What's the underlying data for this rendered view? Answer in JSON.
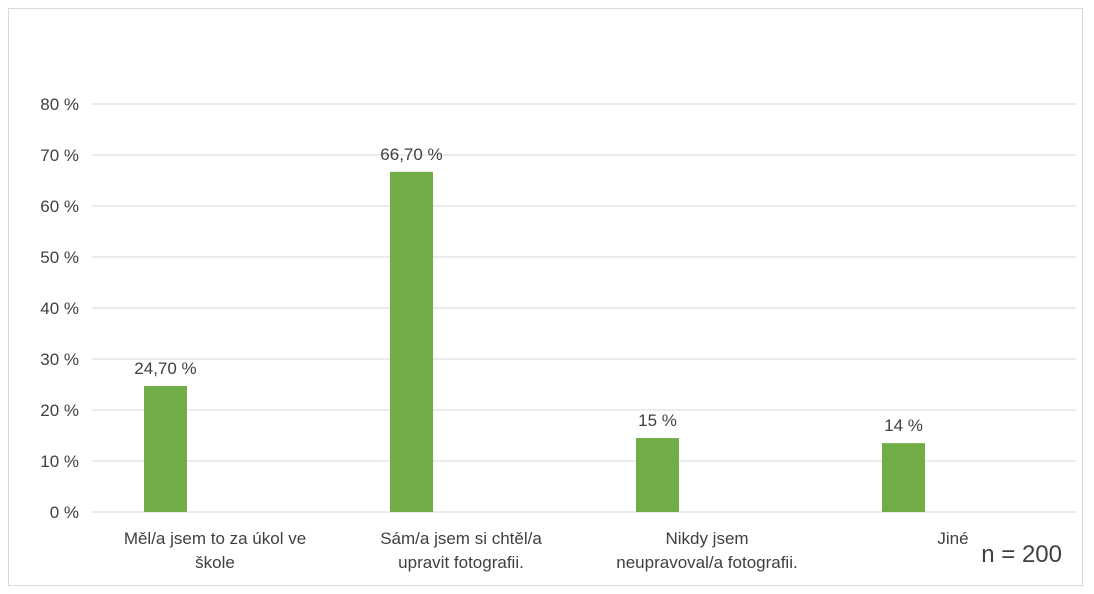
{
  "chart_data": {
    "type": "bar",
    "categories": [
      [
        "Měl/a jsem to za úkol ve",
        "škole"
      ],
      [
        "Sám/a jsem si chtěl/a",
        "upravit fotografii."
      ],
      [
        "Nikdy jsem",
        "neupravoval/a fotografii."
      ],
      [
        "Jiné"
      ]
    ],
    "values": [
      24.7,
      66.7,
      14.5,
      13.5
    ],
    "data_labels": [
      "24,70 %",
      "66,70 %",
      "15 %",
      "14 %"
    ],
    "yticks": [
      "0 %",
      "10 %",
      "20 %",
      "30 %",
      "40 %",
      "50 %",
      "60 %",
      "70 %",
      "80 %"
    ],
    "ylim": [
      0,
      80
    ],
    "grid": true,
    "bar_color": "#70ad47",
    "grid_color": "#d9d9d9",
    "text_color": "#404040",
    "annotation": "n = 200"
  }
}
